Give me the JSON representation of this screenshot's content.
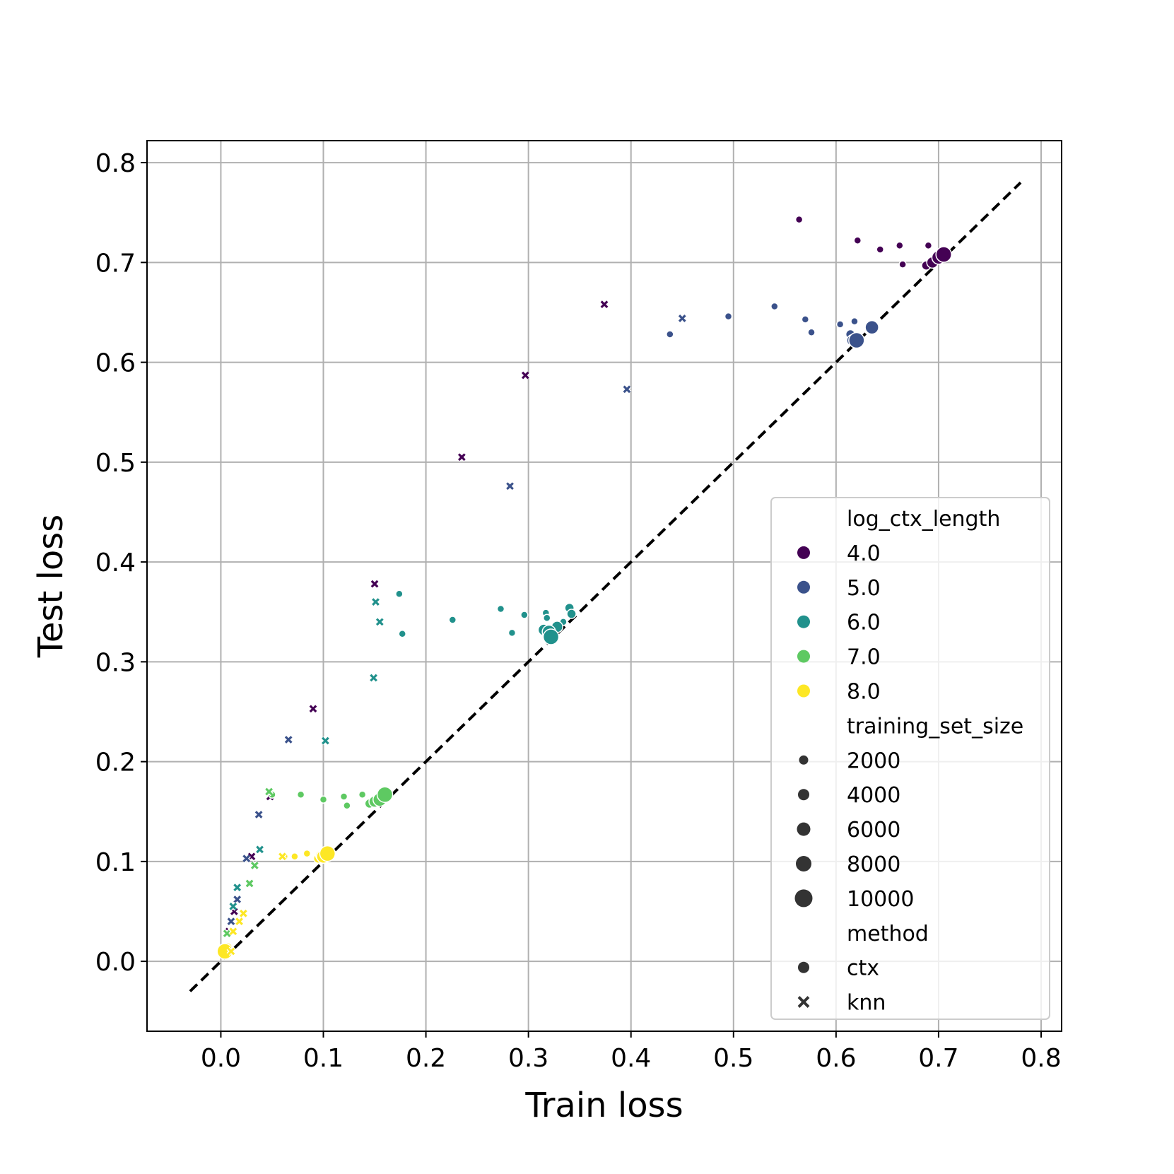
{
  "chart_data": {
    "type": "scatter",
    "title": "",
    "xlabel": "Train loss",
    "ylabel": "Test loss",
    "xlim": [
      -0.072,
      0.82
    ],
    "ylim": [
      -0.07,
      0.822
    ],
    "xticks": [
      "0.0",
      "0.1",
      "0.2",
      "0.3",
      "0.4",
      "0.5",
      "0.6",
      "0.7",
      "0.8"
    ],
    "yticks": [
      "0.0",
      "0.1",
      "0.2",
      "0.3",
      "0.4",
      "0.5",
      "0.6",
      "0.7",
      "0.8"
    ],
    "grid": true,
    "reference_line": {
      "style": "dashed",
      "color": "#000000",
      "from": [
        -0.03,
        -0.03
      ],
      "to": [
        0.78,
        0.78
      ]
    },
    "legend": {
      "placement": "lower-right",
      "hue_title": "log_ctx_length",
      "hue_entries": [
        {
          "label": "4.0",
          "color": "#440154"
        },
        {
          "label": "5.0",
          "color": "#3b528b"
        },
        {
          "label": "6.0",
          "color": "#21918c"
        },
        {
          "label": "7.0",
          "color": "#5ec962"
        },
        {
          "label": "8.0",
          "color": "#fde725"
        }
      ],
      "size_title": "training_set_size",
      "size_entries": [
        "2000",
        "4000",
        "6000",
        "8000",
        "10000"
      ],
      "style_title": "method",
      "style_entries": [
        {
          "label": "ctx",
          "marker": "circle"
        },
        {
          "label": "knn",
          "marker": "x"
        }
      ]
    },
    "series": [
      {
        "hue": "4.0",
        "method": "ctx",
        "points": [
          [
            0.564,
            0.743,
            2000
          ],
          [
            0.621,
            0.722,
            2000
          ],
          [
            0.643,
            0.713,
            2000
          ],
          [
            0.662,
            0.717,
            2000
          ],
          [
            0.665,
            0.698,
            2000
          ],
          [
            0.69,
            0.717,
            2000
          ],
          [
            0.688,
            0.697,
            4000
          ],
          [
            0.694,
            0.7,
            6000
          ],
          [
            0.7,
            0.705,
            8000
          ],
          [
            0.705,
            0.708,
            10000
          ]
        ]
      },
      {
        "hue": "4.0",
        "method": "knn",
        "points": [
          [
            0.374,
            0.658,
            2000
          ],
          [
            0.297,
            0.587,
            2000
          ],
          [
            0.235,
            0.505,
            2000
          ],
          [
            0.15,
            0.378,
            2000
          ],
          [
            0.09,
            0.253,
            2000
          ],
          [
            0.048,
            0.165,
            2000
          ],
          [
            0.03,
            0.105,
            2000
          ],
          [
            0.013,
            0.05,
            2000
          ],
          [
            0.008,
            0.03,
            2000
          ]
        ]
      },
      {
        "hue": "5.0",
        "method": "ctx",
        "points": [
          [
            0.438,
            0.628,
            2000
          ],
          [
            0.495,
            0.646,
            2000
          ],
          [
            0.54,
            0.656,
            2000
          ],
          [
            0.57,
            0.643,
            2000
          ],
          [
            0.576,
            0.63,
            2000
          ],
          [
            0.604,
            0.638,
            2000
          ],
          [
            0.618,
            0.641,
            2000
          ],
          [
            0.614,
            0.628,
            4000
          ],
          [
            0.616,
            0.622,
            6000
          ],
          [
            0.62,
            0.622,
            10000
          ],
          [
            0.635,
            0.635,
            8000
          ]
        ]
      },
      {
        "hue": "5.0",
        "method": "knn",
        "points": [
          [
            0.45,
            0.644,
            2000
          ],
          [
            0.396,
            0.573,
            2000
          ],
          [
            0.282,
            0.476,
            2000
          ],
          [
            0.066,
            0.222,
            2000
          ],
          [
            0.037,
            0.147,
            2000
          ],
          [
            0.025,
            0.103,
            2000
          ],
          [
            0.016,
            0.062,
            2000
          ],
          [
            0.01,
            0.04,
            2000
          ]
        ]
      },
      {
        "hue": "6.0",
        "method": "ctx",
        "points": [
          [
            0.174,
            0.368,
            2000
          ],
          [
            0.177,
            0.328,
            2000
          ],
          [
            0.226,
            0.342,
            2000
          ],
          [
            0.273,
            0.353,
            2000
          ],
          [
            0.284,
            0.329,
            2000
          ],
          [
            0.296,
            0.347,
            2000
          ],
          [
            0.317,
            0.349,
            2000
          ],
          [
            0.318,
            0.344,
            2000
          ],
          [
            0.334,
            0.34,
            2000
          ],
          [
            0.34,
            0.354,
            4000
          ],
          [
            0.342,
            0.348,
            4000
          ],
          [
            0.315,
            0.332,
            6000
          ],
          [
            0.328,
            0.335,
            6000
          ],
          [
            0.32,
            0.33,
            8000
          ],
          [
            0.322,
            0.325,
            10000
          ]
        ]
      },
      {
        "hue": "6.0",
        "method": "knn",
        "points": [
          [
            0.151,
            0.36,
            2000
          ],
          [
            0.155,
            0.34,
            2000
          ],
          [
            0.149,
            0.284,
            2000
          ],
          [
            0.102,
            0.221,
            2000
          ],
          [
            0.038,
            0.112,
            2000
          ],
          [
            0.016,
            0.074,
            2000
          ],
          [
            0.012,
            0.055,
            2000
          ]
        ]
      },
      {
        "hue": "7.0",
        "method": "ctx",
        "points": [
          [
            0.05,
            0.167,
            2000
          ],
          [
            0.078,
            0.167,
            2000
          ],
          [
            0.1,
            0.162,
            2000
          ],
          [
            0.12,
            0.165,
            2000
          ],
          [
            0.123,
            0.156,
            2000
          ],
          [
            0.138,
            0.167,
            2000
          ],
          [
            0.145,
            0.158,
            4000
          ],
          [
            0.15,
            0.16,
            6000
          ],
          [
            0.155,
            0.162,
            8000
          ],
          [
            0.16,
            0.167,
            10000
          ]
        ]
      },
      {
        "hue": "7.0",
        "method": "knn",
        "points": [
          [
            0.047,
            0.17,
            2000
          ],
          [
            0.033,
            0.096,
            2000
          ],
          [
            0.028,
            0.078,
            2000
          ],
          [
            0.006,
            0.028,
            2000
          ]
        ]
      },
      {
        "hue": "8.0",
        "method": "ctx",
        "points": [
          [
            0.062,
            0.105,
            2000
          ],
          [
            0.072,
            0.105,
            2000
          ],
          [
            0.084,
            0.108,
            2000
          ],
          [
            0.095,
            0.103,
            4000
          ],
          [
            0.098,
            0.106,
            6000
          ],
          [
            0.1,
            0.105,
            8000
          ],
          [
            0.104,
            0.108,
            10000
          ],
          [
            0.006,
            0.013,
            6000
          ],
          [
            0.004,
            0.01,
            10000
          ]
        ]
      },
      {
        "hue": "8.0",
        "method": "knn",
        "points": [
          [
            0.06,
            0.105,
            2000
          ],
          [
            0.022,
            0.048,
            2000
          ],
          [
            0.018,
            0.04,
            2000
          ],
          [
            0.012,
            0.03,
            2000
          ],
          [
            0.01,
            0.01,
            2000
          ]
        ]
      }
    ]
  }
}
